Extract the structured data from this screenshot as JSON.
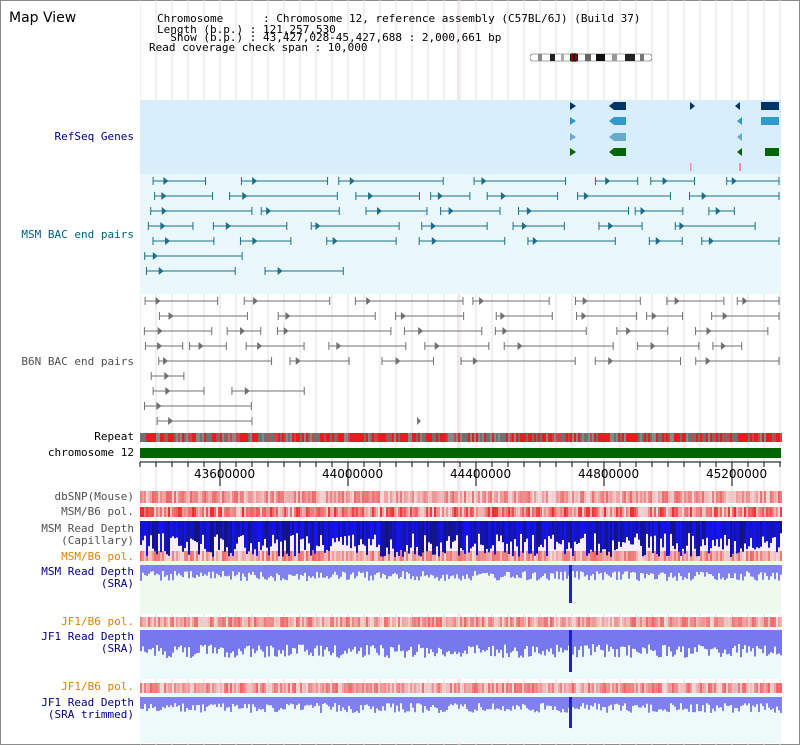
{
  "header": {
    "title": "Map View",
    "chromosome_line": "Chromosome      : Chromosome 12, reference assembly (C57BL/6J) (Build 37)",
    "length_line": "Length (b.p.) : 121,257,530",
    "show_line": "  Show (b.p.) : 43,427,028-45,427,688 : 2,000,661 bp",
    "coverage_line": "Read coverage check span : 10,000"
  },
  "tracks": {
    "refseq": "RefSeq Genes",
    "msm_bac": "MSM BAC end pairs",
    "b6n_bac": "B6N BAC end pairs",
    "repeat": "Repeat",
    "chromosome": "chromosome 12",
    "dbsnp": "dbSNP(Mouse)",
    "msm_b6_pol_1": "MSM/B6 pol.",
    "msm_read_depth_cap_1": "MSM Read Depth",
    "msm_read_depth_cap_2": "(Capillary)",
    "msm_b6_pol_2": "MSM/B6 pol.",
    "msm_read_depth_sra_1": "MSM Read Depth",
    "msm_read_depth_sra_2": "(SRA)",
    "jf1_b6_pol_1": "JF1/B6 pol.",
    "jf1_read_depth_sra_1": "JF1 Read Depth",
    "jf1_read_depth_sra_2": "(SRA)",
    "jf1_b6_pol_2": "JF1/B6 pol.",
    "jf1_read_depth_trim_1": "JF1 Read Depth",
    "jf1_read_depth_trim_2": "(SRA trimmed)"
  },
  "axis": {
    "ticks": [
      "43600000",
      "44000000",
      "44400000",
      "44800000",
      "45200000"
    ]
  },
  "colors": {
    "navy_label": "#000080",
    "teal_label": "#006080",
    "gray_label": "#505050",
    "orange_label": "#e08000",
    "refseq_bg": "#d8eefa",
    "bac_bg": "#eaf8fb",
    "chromosome_bar": "#006400",
    "read_depth_blue": "#2020e0",
    "sra_depth": "#8080f0"
  }
}
